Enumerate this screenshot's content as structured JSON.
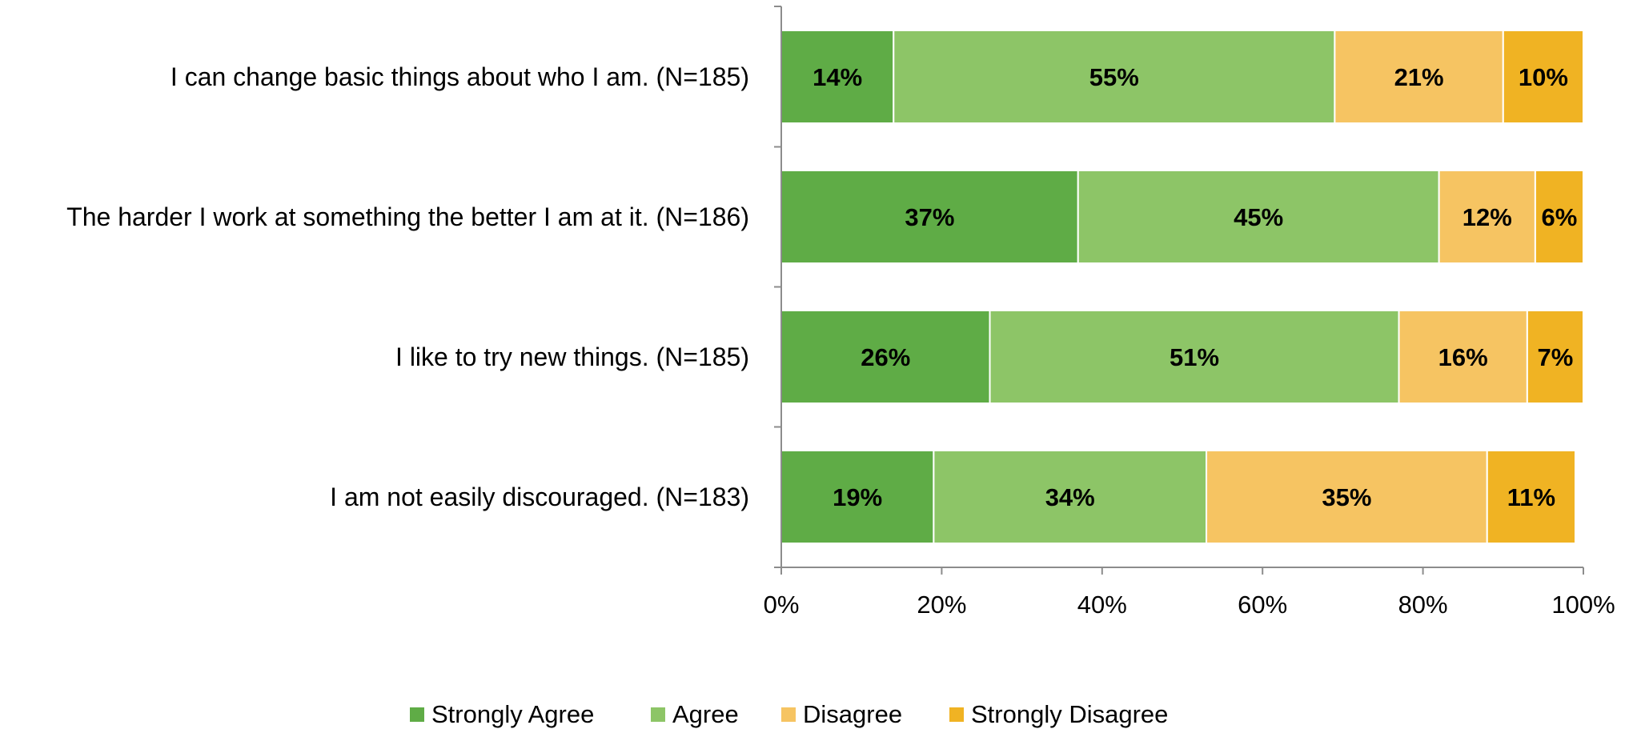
{
  "chart_data": {
    "type": "bar",
    "orientation": "horizontal",
    "stacked": true,
    "title": "",
    "xlabel": "",
    "ylabel": "",
    "xlim": [
      0,
      100
    ],
    "x_ticks": [
      "0%",
      "20%",
      "40%",
      "60%",
      "80%",
      "100%"
    ],
    "categories": [
      "I can change basic things about who I am. (N=185)",
      "The harder I work at something the better I am at it. (N=186)",
      "I like to try new things. (N=185)",
      "I am not easily discouraged. (N=183)"
    ],
    "series": [
      {
        "name": "Strongly Agree",
        "color": "#5fac46",
        "values": [
          14,
          37,
          26,
          19
        ]
      },
      {
        "name": "Agree",
        "color": "#8dc567",
        "values": [
          55,
          45,
          51,
          34
        ]
      },
      {
        "name": "Disagree",
        "color": "#f6c462",
        "values": [
          21,
          12,
          16,
          35
        ]
      },
      {
        "name": "Strongly Disagree",
        "color": "#f0b323",
        "values": [
          10,
          6,
          7,
          11
        ]
      }
    ],
    "data_labels": [
      [
        "14%",
        "55%",
        "21%",
        "10%"
      ],
      [
        "37%",
        "45%",
        "12%",
        "6%"
      ],
      [
        "26%",
        "51%",
        "16%",
        "7%"
      ],
      [
        "19%",
        "34%",
        "35%",
        "11%"
      ]
    ],
    "grid": false,
    "legend_position": "bottom"
  }
}
